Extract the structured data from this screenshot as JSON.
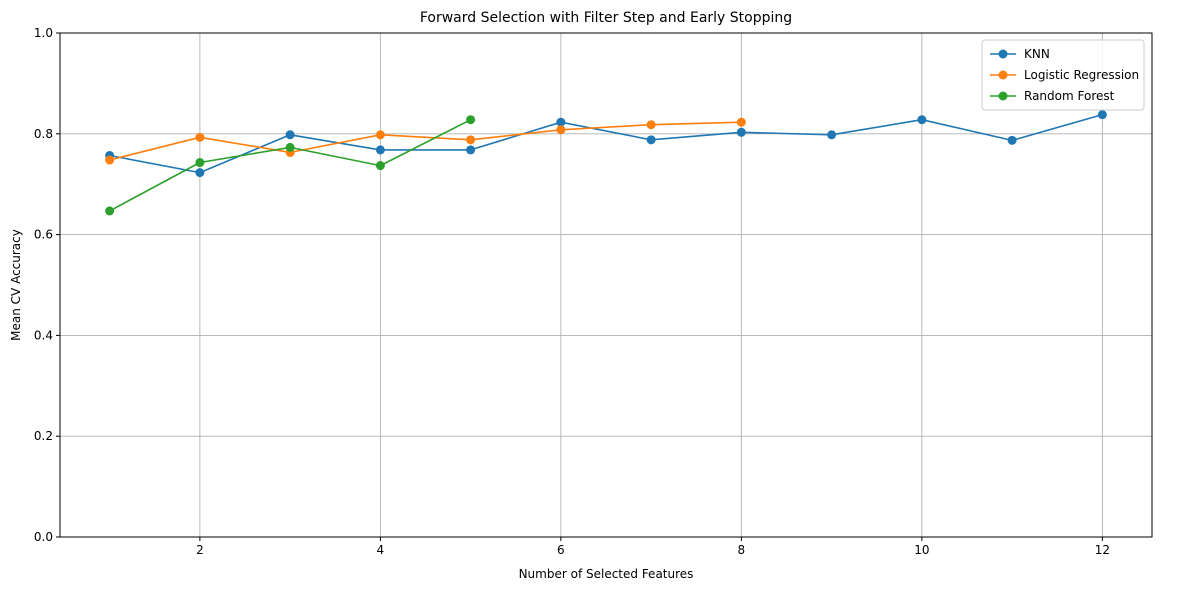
{
  "chart_data": {
    "type": "line",
    "title": "Forward Selection with Filter Step and Early Stopping",
    "xlabel": "Number of Selected Features",
    "ylabel": "Mean CV Accuracy",
    "xlim": [
      0.45,
      12.55
    ],
    "ylim": [
      0.0,
      1.0
    ],
    "xticks": [
      2,
      4,
      6,
      8,
      10,
      12
    ],
    "yticks": [
      0.0,
      0.2,
      0.4,
      0.6,
      0.8,
      1.0
    ],
    "xtick_labels": [
      "2",
      "4",
      "6",
      "8",
      "10",
      "12"
    ],
    "ytick_labels": [
      "0.0",
      "0.2",
      "0.4",
      "0.6",
      "0.8",
      "1.0"
    ],
    "grid": true,
    "legend_position": "top-right",
    "series": [
      {
        "name": "KNN",
        "color": "#1f77b4",
        "x": [
          1,
          2,
          3,
          4,
          5,
          6,
          7,
          8,
          9,
          10,
          11,
          12
        ],
        "y": [
          0.757,
          0.723,
          0.798,
          0.768,
          0.768,
          0.823,
          0.788,
          0.803,
          0.798,
          0.828,
          0.787,
          0.838
        ]
      },
      {
        "name": "Logistic Regression",
        "color": "#ff7f0e",
        "x": [
          1,
          2,
          3,
          4,
          5,
          6,
          7,
          8
        ],
        "y": [
          0.748,
          0.793,
          0.763,
          0.798,
          0.788,
          0.808,
          0.818,
          0.823
        ]
      },
      {
        "name": "Random Forest",
        "color": "#2ca02c",
        "x": [
          1,
          2,
          3,
          4,
          5
        ],
        "y": [
          0.647,
          0.743,
          0.773,
          0.737,
          0.828
        ]
      }
    ]
  }
}
